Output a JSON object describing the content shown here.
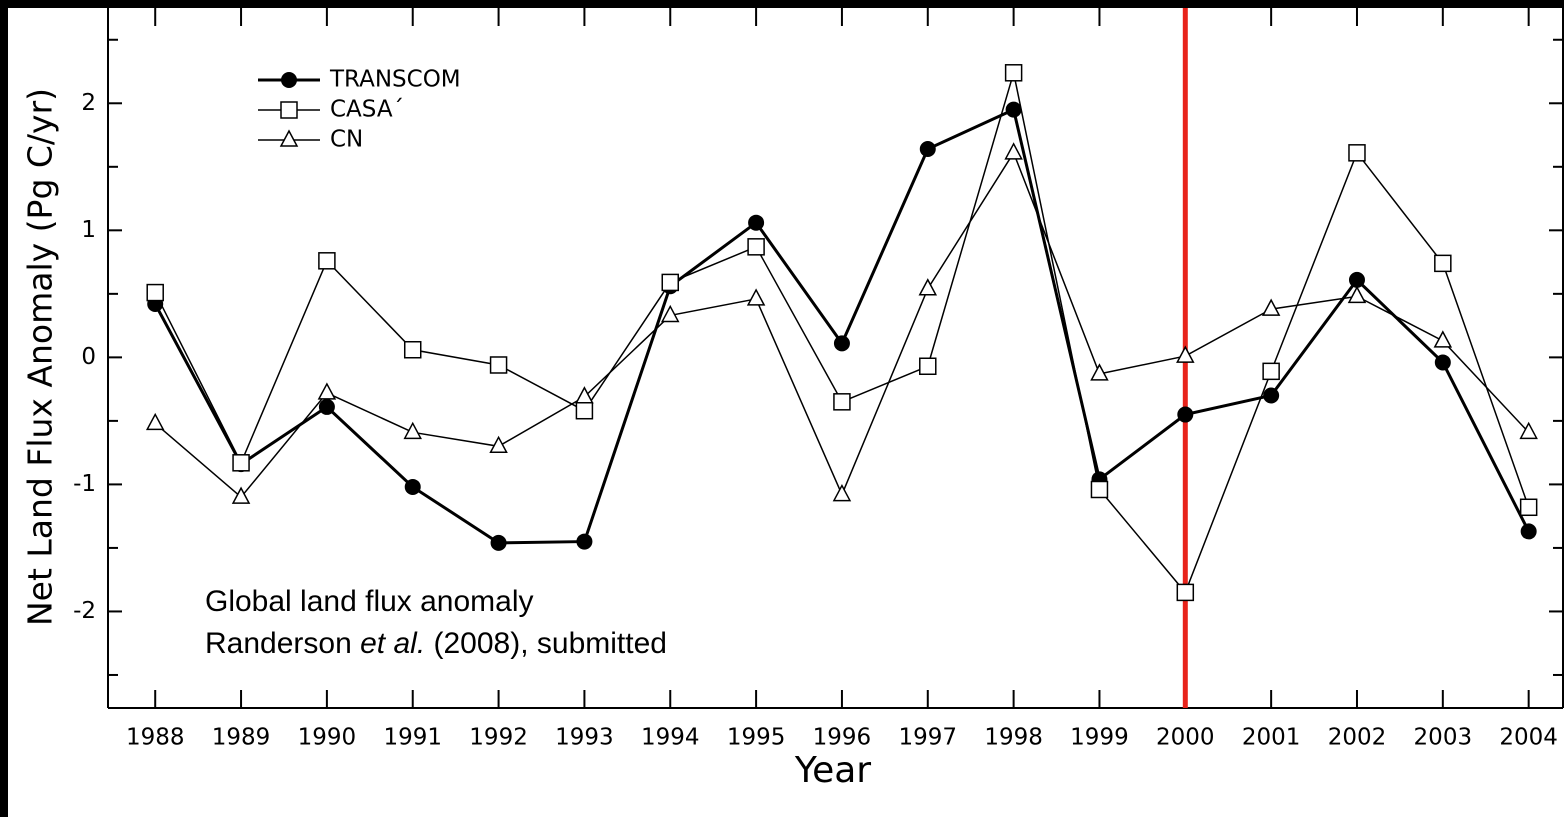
{
  "chart_data": {
    "type": "line",
    "xlabel": "Year",
    "ylabel": "Net Land Flux Anomaly (Pg C/yr)",
    "x": [
      1988,
      1989,
      1990,
      1991,
      1992,
      1993,
      1994,
      1995,
      1996,
      1997,
      1998,
      1999,
      2000,
      2001,
      2002,
      2003,
      2004
    ],
    "xlim": [
      1987.45,
      2004.4
    ],
    "xticks": [
      1988,
      1989,
      1990,
      1991,
      1992,
      1993,
      1994,
      1995,
      1996,
      1997,
      1998,
      1999,
      2000,
      2001,
      2002,
      2003,
      2004
    ],
    "ylim": [
      -2.76,
      2.75
    ],
    "yticks": [
      -2,
      -1,
      0,
      1,
      2
    ],
    "yminor_ticks": [
      -2.5,
      -1.5,
      -0.5,
      0.5,
      1.5,
      2.5
    ],
    "legend": "upper left",
    "series": [
      {
        "name": "TRANSCOM",
        "color": "#000000",
        "marker": "filled-circle",
        "values": [
          0.42,
          -0.84,
          -0.39,
          -1.02,
          -1.46,
          -1.45,
          0.56,
          1.06,
          0.11,
          1.64,
          1.95,
          -0.96,
          -0.45,
          -0.3,
          0.61,
          -0.04,
          -1.37
        ]
      },
      {
        "name": "CASA´",
        "color": "#000000",
        "marker": "open-square",
        "values": [
          0.51,
          -0.83,
          0.76,
          0.06,
          -0.06,
          -0.42,
          0.59,
          0.87,
          -0.35,
          -0.07,
          2.24,
          -1.04,
          -1.85,
          -0.11,
          1.61,
          0.74,
          -1.18
        ]
      },
      {
        "name": "CN",
        "color": "#000000",
        "marker": "open-triangle",
        "values": [
          -0.52,
          -1.1,
          -0.28,
          -0.59,
          -0.7,
          -0.31,
          0.33,
          0.46,
          -1.08,
          0.54,
          1.61,
          -0.13,
          0.01,
          0.38,
          0.48,
          0.13,
          -0.59
        ]
      }
    ],
    "vline": {
      "x": 2000,
      "color": "#e8231b"
    },
    "annotation": {
      "line1": "Global land flux anomaly",
      "line2": [
        "Randerson ",
        "et al.",
        " (2008), submitted"
      ]
    }
  }
}
